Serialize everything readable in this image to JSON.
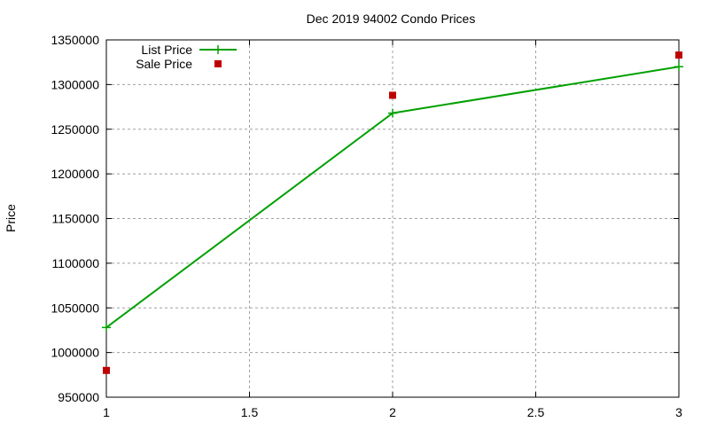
{
  "chart_data": {
    "type": "line",
    "title": "Dec 2019 94002 Condo Prices",
    "xlabel": "",
    "ylabel": "Price",
    "xlim": [
      1,
      3
    ],
    "ylim": [
      950000,
      1350000
    ],
    "xticks": [
      1,
      1.5,
      2,
      2.5,
      3
    ],
    "xtick_labels": [
      "1",
      "1.5",
      "2",
      "2.5",
      "3"
    ],
    "yticks": [
      950000,
      1000000,
      1050000,
      1100000,
      1150000,
      1200000,
      1250000,
      1300000,
      1350000
    ],
    "ytick_labels": [
      "950000",
      "1000000",
      "1050000",
      "1100000",
      "1150000",
      "1200000",
      "1250000",
      "1300000",
      "1350000"
    ],
    "grid": true,
    "legend_position": "top-left",
    "series": [
      {
        "name": "List Price",
        "style": "linespoints",
        "color": "#00a000",
        "x": [
          1,
          2,
          3
        ],
        "y": [
          1028000,
          1268000,
          1320000
        ]
      },
      {
        "name": "Sale Price",
        "style": "points",
        "color": "#c00000",
        "x": [
          1,
          2,
          3
        ],
        "y": [
          980000,
          1288000,
          1333000
        ]
      }
    ]
  }
}
